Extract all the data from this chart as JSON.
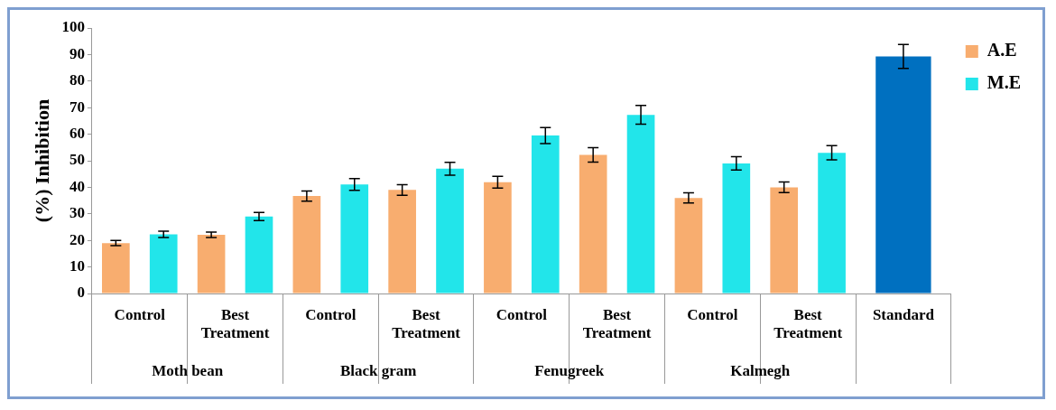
{
  "chart_data": {
    "type": "bar",
    "ylabel": "(%) Inhibition",
    "categories": [
      "Control",
      "Best Treatment",
      "Control",
      "Best Treatment",
      "Control",
      "Best Treatment",
      "Control",
      "Best Treatment",
      "Standard"
    ],
    "annotations": [
      "Moth bean",
      "Black gram",
      "Fenugreek",
      "Kalmegh"
    ],
    "series": [
      {
        "name": "A.E",
        "color": "#f8ad6f",
        "values": [
          19.0,
          22.1,
          36.7,
          39.0,
          41.9,
          52.2,
          36.0,
          40.0,
          null
        ],
        "errors": [
          1.0,
          1.0,
          1.9,
          2.0,
          2.2,
          2.7,
          1.9,
          2.0,
          null
        ]
      },
      {
        "name": "M.E",
        "color": "#22e5ea",
        "values": [
          22.3,
          29.0,
          41.1,
          47.0,
          59.5,
          67.3,
          49.0,
          53.0,
          null
        ],
        "errors": [
          1.2,
          1.5,
          2.2,
          2.4,
          3.0,
          3.5,
          2.5,
          2.7,
          null
        ]
      },
      {
        "color": "#0070c0",
        "values": [
          null,
          null,
          null,
          null,
          null,
          null,
          null,
          null,
          89.3
        ],
        "errors": [
          null,
          null,
          null,
          null,
          null,
          null,
          null,
          null,
          4.5
        ]
      }
    ],
    "ylim": [
      0,
      100
    ],
    "yticks": [
      0,
      10,
      20,
      30,
      40,
      50,
      60,
      70,
      80,
      90,
      100
    ],
    "grid": false,
    "legend": "top right"
  }
}
